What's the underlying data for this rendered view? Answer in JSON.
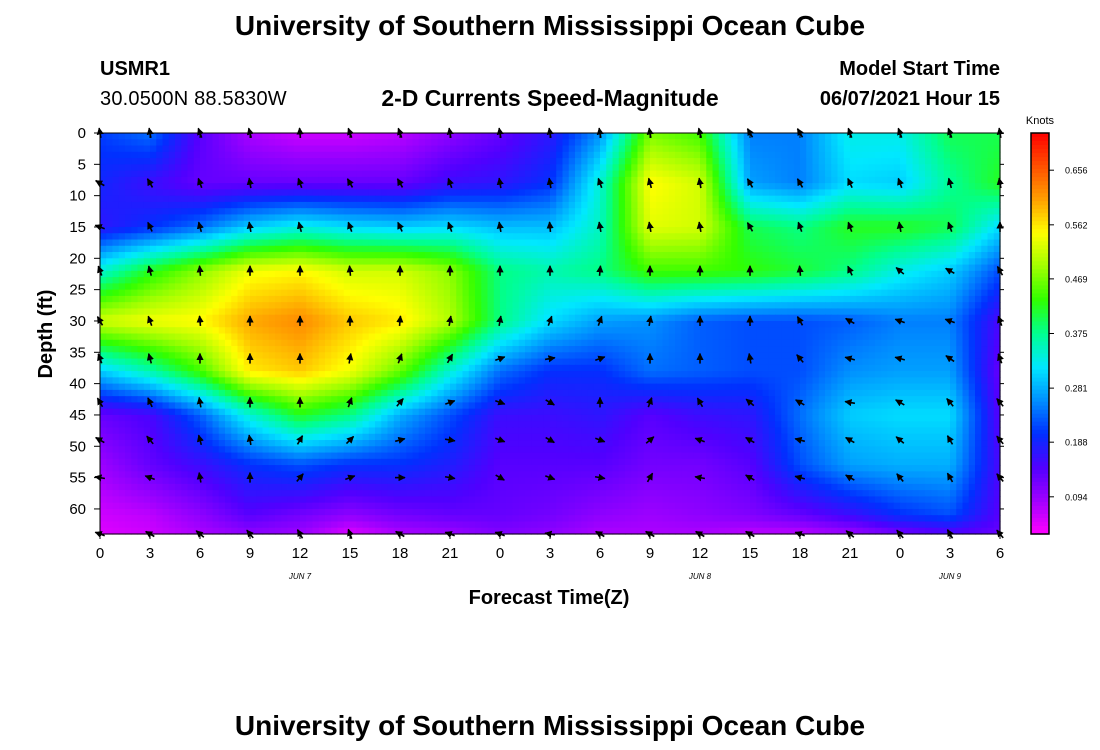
{
  "header": {
    "title_top": "University of Southern Mississippi Ocean Cube",
    "title_bottom": "University of Southern Mississippi Ocean Cube",
    "station_id": "USMR1",
    "station_coords": "30.0500N  88.5830W",
    "subtitle": "2-D Currents Speed-Magnitude",
    "model_start_label": "Model Start Time",
    "model_start_value": "06/07/2021 Hour 15"
  },
  "chart_data": {
    "type": "heatmap",
    "title": "2-D Currents Speed-Magnitude",
    "xlabel": "Forecast Time(Z)",
    "ylabel": "Depth (ft)",
    "x_tick_labels": [
      "0",
      "3",
      "6",
      "9",
      "12",
      "15",
      "18",
      "21",
      "0",
      "3",
      "6",
      "9",
      "12",
      "15",
      "18",
      "21",
      "0",
      "3",
      "6"
    ],
    "x_date_labels": [
      {
        "text": "JUN 7",
        "at_tick": 4
      },
      {
        "text": "JUN 8",
        "at_tick": 12
      },
      {
        "text": "JUN 9",
        "at_tick": 17
      }
    ],
    "y_tick_labels": [
      "0",
      "5",
      "10",
      "15",
      "20",
      "25",
      "30",
      "35",
      "40",
      "45",
      "50",
      "55",
      "60"
    ],
    "y_ticks": [
      0,
      5,
      10,
      15,
      20,
      25,
      30,
      35,
      40,
      45,
      50,
      55,
      60
    ],
    "y_range": [
      0,
      64
    ],
    "colorbar": {
      "unit": "Knots",
      "tick_labels": [
        "0.656",
        "0.562",
        "0.469",
        "0.375",
        "0.281",
        "0.188",
        "0.094"
      ],
      "ticks": [
        0.656,
        0.562,
        0.469,
        0.375,
        0.281,
        0.188,
        0.094
      ],
      "range": [
        0.03,
        0.72
      ],
      "colors": [
        "#ff00ff",
        "#a000ff",
        "#5000ff",
        "#0030ff",
        "#0090ff",
        "#00e8ff",
        "#00ff90",
        "#30ff00",
        "#a0ff00",
        "#ffff00",
        "#ffa000",
        "#ff5000",
        "#ff0000"
      ]
    },
    "speed_knots_grid": {
      "depths_ft": [
        0,
        8,
        15,
        22,
        30,
        38,
        45,
        53,
        61,
        64
      ],
      "rows": [
        [
          0.21,
          0.24,
          0.14,
          0.08,
          0.06,
          0.06,
          0.07,
          0.1,
          0.13,
          0.17,
          0.26,
          0.47,
          0.44,
          0.25,
          0.25,
          0.33,
          0.33,
          0.4,
          0.4
        ],
        [
          0.19,
          0.16,
          0.13,
          0.13,
          0.13,
          0.13,
          0.13,
          0.16,
          0.17,
          0.2,
          0.34,
          0.55,
          0.52,
          0.27,
          0.25,
          0.31,
          0.3,
          0.37,
          0.42
        ],
        [
          0.17,
          0.2,
          0.24,
          0.3,
          0.33,
          0.31,
          0.3,
          0.31,
          0.29,
          0.29,
          0.35,
          0.53,
          0.52,
          0.4,
          0.38,
          0.42,
          0.42,
          0.4,
          0.31
        ],
        [
          0.34,
          0.42,
          0.48,
          0.54,
          0.55,
          0.52,
          0.52,
          0.48,
          0.38,
          0.36,
          0.38,
          0.44,
          0.44,
          0.43,
          0.41,
          0.38,
          0.33,
          0.3,
          0.22
        ],
        [
          0.52,
          0.54,
          0.55,
          0.6,
          0.62,
          0.58,
          0.56,
          0.5,
          0.38,
          0.31,
          0.27,
          0.26,
          0.23,
          0.22,
          0.22,
          0.23,
          0.25,
          0.25,
          0.15
        ],
        [
          0.3,
          0.36,
          0.44,
          0.56,
          0.58,
          0.54,
          0.46,
          0.34,
          0.24,
          0.2,
          0.2,
          0.24,
          0.23,
          0.22,
          0.22,
          0.26,
          0.27,
          0.27,
          0.13
        ],
        [
          0.13,
          0.15,
          0.23,
          0.34,
          0.42,
          0.38,
          0.28,
          0.22,
          0.16,
          0.16,
          0.17,
          0.14,
          0.16,
          0.17,
          0.24,
          0.3,
          0.31,
          0.31,
          0.14
        ],
        [
          0.09,
          0.13,
          0.16,
          0.2,
          0.22,
          0.2,
          0.2,
          0.18,
          0.14,
          0.14,
          0.14,
          0.12,
          0.12,
          0.14,
          0.22,
          0.27,
          0.28,
          0.28,
          0.15
        ],
        [
          0.06,
          0.07,
          0.1,
          0.14,
          0.12,
          0.1,
          0.12,
          0.13,
          0.13,
          0.12,
          0.1,
          0.09,
          0.1,
          0.11,
          0.13,
          0.16,
          0.2,
          0.22,
          0.14
        ],
        [
          0.05,
          0.06,
          0.08,
          0.1,
          0.09,
          0.05,
          0.08,
          0.09,
          0.11,
          0.1,
          0.08,
          0.08,
          0.08,
          0.07,
          0.07,
          0.09,
          0.12,
          0.14,
          0.13
        ]
      ]
    },
    "vectors": {
      "depths_ft": [
        0,
        8,
        15,
        22,
        30,
        36,
        43,
        49,
        55,
        64
      ],
      "angles_deg": [
        [
          350,
          350,
          340,
          345,
          355,
          340,
          340,
          350,
          350,
          350,
          350,
          350,
          345,
          330,
          330,
          340,
          340,
          340,
          350
        ],
        [
          300,
          330,
          340,
          350,
          340,
          330,
          330,
          340,
          350,
          350,
          340,
          345,
          350,
          330,
          330,
          335,
          340,
          345,
          350
        ],
        [
          290,
          335,
          345,
          350,
          345,
          340,
          335,
          340,
          350,
          355,
          350,
          350,
          350,
          330,
          340,
          340,
          350,
          340,
          0
        ],
        [
          340,
          345,
          355,
          0,
          0,
          355,
          0,
          0,
          0,
          0,
          5,
          0,
          0,
          0,
          355,
          335,
          310,
          300,
          330
        ],
        [
          330,
          340,
          355,
          0,
          0,
          0,
          5,
          10,
          10,
          20,
          20,
          10,
          0,
          0,
          330,
          300,
          290,
          290,
          340
        ],
        [
          340,
          345,
          0,
          0,
          0,
          10,
          20,
          30,
          70,
          80,
          70,
          0,
          0,
          350,
          320,
          285,
          285,
          305,
          340
        ],
        [
          330,
          335,
          350,
          0,
          0,
          20,
          40,
          70,
          110,
          120,
          0,
          20,
          330,
          310,
          300,
          280,
          300,
          320,
          320
        ],
        [
          300,
          320,
          345,
          350,
          30,
          45,
          75,
          100,
          110,
          120,
          110,
          50,
          290,
          300,
          285,
          300,
          310,
          330,
          320
        ],
        [
          280,
          290,
          350,
          0,
          40,
          70,
          90,
          100,
          120,
          110,
          100,
          30,
          280,
          300,
          285,
          300,
          320,
          330,
          320
        ],
        [
          290,
          300,
          310,
          320,
          330,
          340,
          300,
          290,
          290,
          280,
          300,
          300,
          300,
          300,
          290,
          310,
          320,
          330,
          320
        ]
      ]
    }
  }
}
